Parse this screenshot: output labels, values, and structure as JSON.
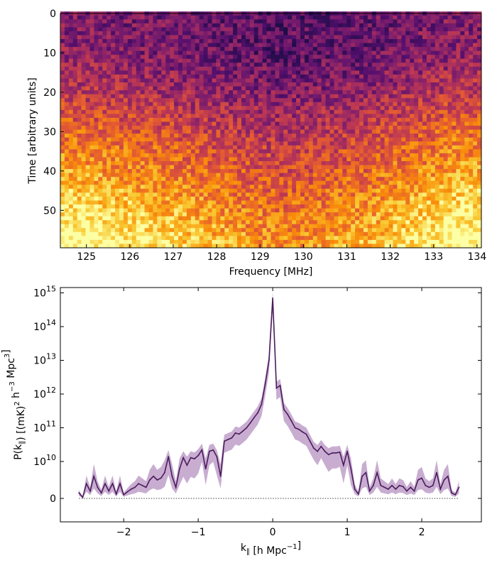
{
  "chart_data": [
    {
      "type": "heatmap",
      "xlabel": "Frequency [MHz]",
      "ylabel": "Time [arbitrary units]",
      "xlim": [
        124.4,
        134.1
      ],
      "ylim": [
        59.5,
        0
      ],
      "xticks": [
        125,
        126,
        127,
        128,
        129,
        130,
        131,
        132,
        133,
        134
      ],
      "yticks": [
        0,
        10,
        20,
        30,
        40,
        50
      ],
      "colormap": "inferno",
      "grid": false,
      "value_range": [
        0,
        1
      ],
      "time_profile": {
        "times": [
          0,
          10,
          20,
          30,
          40,
          50,
          59
        ],
        "relative_level": [
          0.3,
          0.32,
          0.42,
          0.56,
          0.68,
          0.8,
          0.88
        ]
      },
      "frequency_profile_note_values": {
        "frequencies": [
          124.5,
          126.5,
          129.5,
          131.5,
          133.5
        ],
        "relative_level": [
          0.12,
          0.05,
          -0.1,
          -0.02,
          0.12
        ]
      }
    },
    {
      "type": "line",
      "xlabel": "k∥ [h Mpc⁻¹]",
      "ylabel": "P(k∥) [(mK)² h⁻³ Mpc³]",
      "yscale": "symlog",
      "xlim": [
        -2.85,
        2.8
      ],
      "xticks": [
        -2,
        -1,
        0,
        1,
        2
      ],
      "xtick_labels": [
        "−2",
        "−1",
        "0",
        "1",
        "2"
      ],
      "yticks": [
        0,
        10000000000.0,
        100000000000.0,
        1000000000000.0,
        10000000000000.0,
        100000000000000.0,
        1000000000000000.0
      ],
      "ytick_labels": [
        {
          "base": "0",
          "exp": ""
        },
        {
          "base": "10",
          "exp": "10"
        },
        {
          "base": "10",
          "exp": "11"
        },
        {
          "base": "10",
          "exp": "12"
        },
        {
          "base": "10",
          "exp": "13"
        },
        {
          "base": "10",
          "exp": "14"
        },
        {
          "base": "10",
          "exp": "15"
        }
      ],
      "line_color": "#4b1c5c",
      "band_color": "#9b6aab",
      "zero_line": "dotted",
      "grid": false,
      "series": [
        {
          "x": [
            -2.6,
            -2.55,
            -2.5,
            -2.45,
            -2.4,
            -2.35,
            -2.3,
            -2.25,
            -2.2,
            -2.15,
            -2.1,
            -2.05,
            -2.0,
            -1.95,
            -1.9,
            -1.85,
            -1.8,
            -1.75,
            -1.7,
            -1.65,
            -1.6,
            -1.55,
            -1.5,
            -1.45,
            -1.4,
            -1.35,
            -1.3,
            -1.25,
            -1.2,
            -1.15,
            -1.1,
            -1.05,
            -1.0,
            -0.95,
            -0.9,
            -0.85,
            -0.8,
            -0.75,
            -0.7,
            -0.65,
            -0.6,
            -0.55,
            -0.5,
            -0.45,
            -0.4,
            -0.35,
            -0.3,
            -0.25,
            -0.2,
            -0.15,
            -0.1,
            -0.05,
            0.0,
            0.05,
            0.1,
            0.15,
            0.2,
            0.25,
            0.3,
            0.35,
            0.4,
            0.45,
            0.5,
            0.55,
            0.6,
            0.65,
            0.7,
            0.75,
            0.8,
            0.85,
            0.9,
            0.95,
            1.0,
            1.05,
            1.1,
            1.15,
            1.2,
            1.25,
            1.3,
            1.35,
            1.4,
            1.45,
            1.5,
            1.55,
            1.6,
            1.65,
            1.7,
            1.75,
            1.8,
            1.85,
            1.9,
            1.95,
            2.0,
            2.05,
            2.1,
            2.15,
            2.2,
            2.25,
            2.3,
            2.35,
            2.4,
            2.45,
            2.5
          ],
          "y": [
            1500000000.0,
            300000000.0,
            4000000000.0,
            2000000000.0,
            6000000000.0,
            3000000000.0,
            1500000000.0,
            4000000000.0,
            2000000000.0,
            4000000000.0,
            1200000000.0,
            4000000000.0,
            1000000000.0,
            1800000000.0,
            2500000000.0,
            3000000000.0,
            4000000000.0,
            3500000000.0,
            3000000000.0,
            5000000000.0,
            6000000000.0,
            5000000000.0,
            5500000000.0,
            7000000000.0,
            14000000000.0,
            6000000000.0,
            3000000000.0,
            8000000000.0,
            13000000000.0,
            9000000000.0,
            13000000000.0,
            12000000000.0,
            15000000000.0,
            22000000000.0,
            8000000000.0,
            20000000000.0,
            22000000000.0,
            14000000000.0,
            6000000000.0,
            40000000000.0,
            45000000000.0,
            50000000000.0,
            70000000000.0,
            65000000000.0,
            80000000000.0,
            100000000000.0,
            140000000000.0,
            200000000000.0,
            280000000000.0,
            500000000000.0,
            2000000000000.0,
            10000000000000.0,
            700000000000000.0,
            1500000000000.0,
            1800000000000.0,
            350000000000.0,
            250000000000.0,
            160000000000.0,
            100000000000.0,
            90000000000.0,
            75000000000.0,
            65000000000.0,
            40000000000.0,
            25000000000.0,
            20000000000.0,
            28000000000.0,
            20000000000.0,
            16000000000.0,
            18000000000.0,
            18000000000.0,
            19000000000.0,
            9000000000.0,
            20000000000.0,
            8000000000.0,
            2500000000.0,
            1200000000.0,
            6000000000.0,
            7000000000.0,
            2000000000.0,
            3500000000.0,
            7000000000.0,
            3500000000.0,
            3000000000.0,
            2500000000.0,
            3500000000.0,
            2500000000.0,
            3500000000.0,
            3200000000.0,
            2000000000.0,
            3000000000.0,
            2000000000.0,
            5000000000.0,
            5500000000.0,
            3500000000.0,
            3000000000.0,
            3500000000.0,
            7000000000.0,
            2500000000.0,
            5000000000.0,
            6000000000.0,
            1500000000.0,
            1000000000.0,
            3000000000.0
          ],
          "error_fraction": 0.55
        }
      ]
    }
  ]
}
